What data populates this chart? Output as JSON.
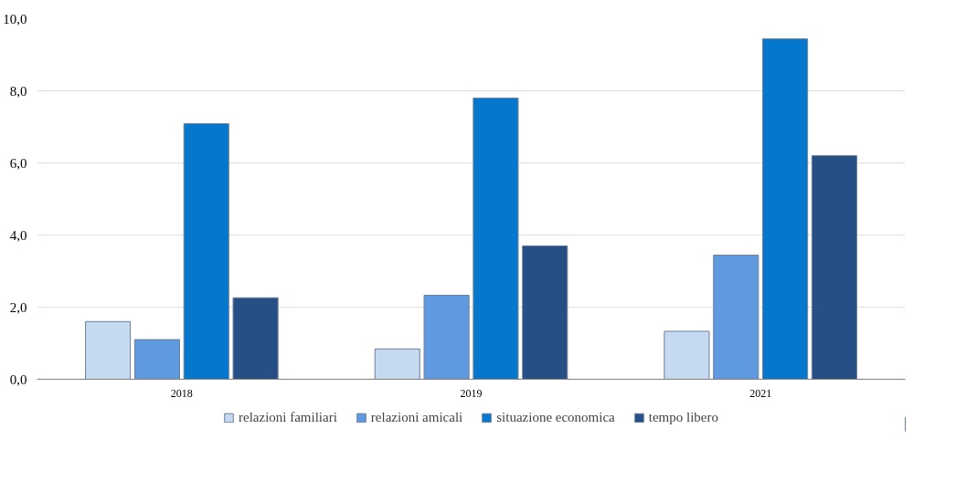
{
  "chart_data": {
    "type": "bar",
    "categories": [
      "2018",
      "2019",
      "2021"
    ],
    "series": [
      {
        "name": "relazioni familiari",
        "color": "#c5d9f1",
        "values": [
          1.6,
          0.84,
          1.33
        ]
      },
      {
        "name": "relazioni amicali",
        "color": "#5f9ae0",
        "values": [
          1.1,
          2.33,
          3.44
        ]
      },
      {
        "name": "situazione economica",
        "color": "#0577cc",
        "values": [
          7.09,
          7.8,
          9.44
        ]
      },
      {
        "name": "tempo libero",
        "color": "#254f85",
        "values": [
          2.26,
          3.7,
          6.2
        ]
      }
    ],
    "ylim": [
      0,
      10
    ],
    "yticks": [
      {
        "value": 0,
        "label": "0,0"
      },
      {
        "value": 2,
        "label": "2,0"
      },
      {
        "value": 4,
        "label": "4,0"
      },
      {
        "value": 6,
        "label": "6,0"
      },
      {
        "value": 8,
        "label": "8,0"
      },
      {
        "value": 10,
        "label": "10,0"
      }
    ],
    "grid": "y",
    "legend": "bottom"
  }
}
